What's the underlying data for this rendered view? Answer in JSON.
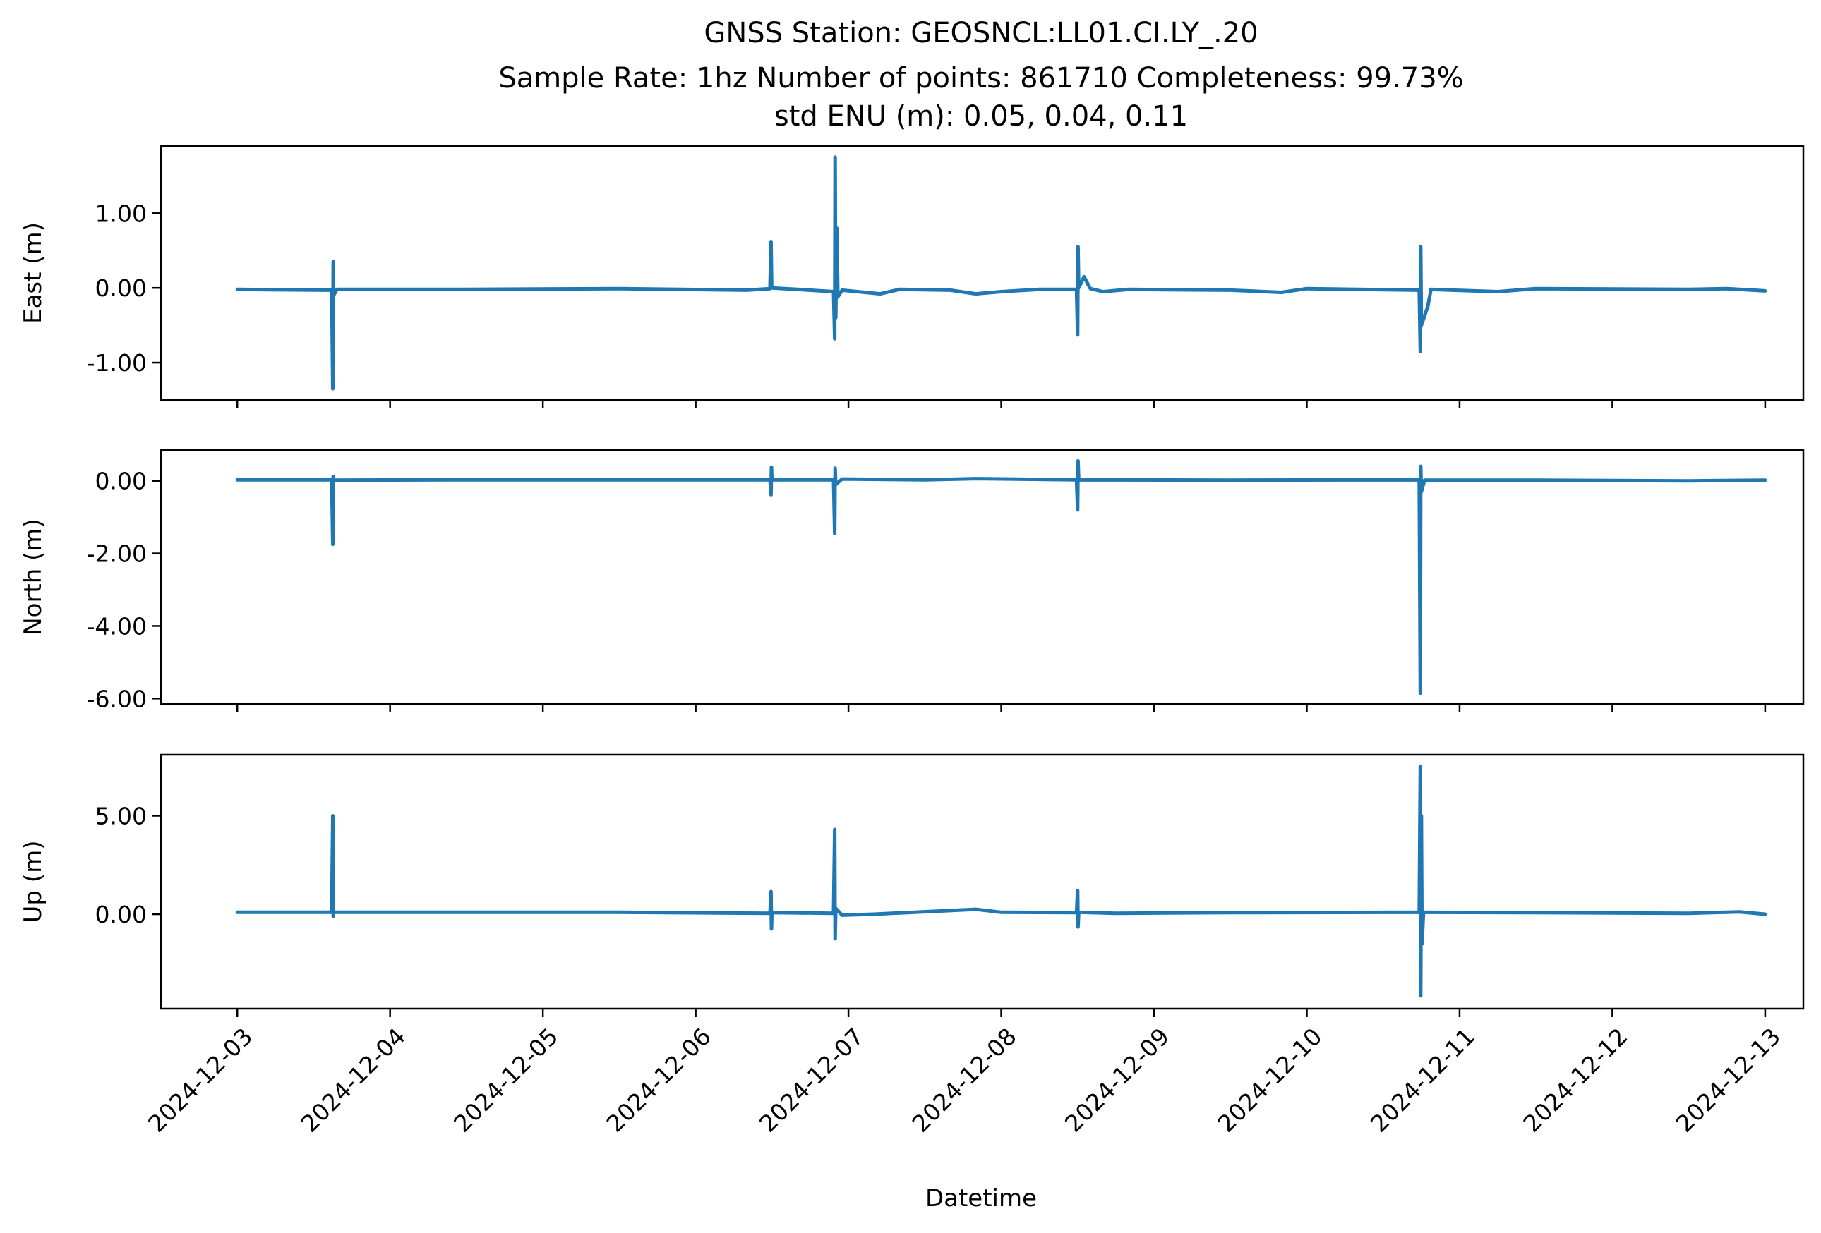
{
  "chart_data": {
    "type": "line",
    "title_lines": [
      "GNSS Station: GEOSNCL:LL01.CI.LY_.20",
      "Sample Rate: 1hz   Number of points: 861710    Completeness:  99.73%",
      "std ENU (m):  0.05, 0.04, 0.11"
    ],
    "xlabel": "Datetime",
    "x_ticks": [
      "2024-12-03",
      "2024-12-04",
      "2024-12-05",
      "2024-12-06",
      "2024-12-07",
      "2024-12-08",
      "2024-12-09",
      "2024-12-10",
      "2024-12-11",
      "2024-12-12",
      "2024-12-13"
    ],
    "xlim": [
      "2024-12-02 12:00",
      "2024-12-13 06:00"
    ],
    "color": "#1f77b4",
    "panels": [
      {
        "ylabel": "East (m)",
        "ylim": [
          -1.5,
          1.9
        ],
        "y_ticks": [
          1.0,
          0.0,
          -1.0
        ],
        "y_tick_labels": [
          "1.00",
          "0.00",
          "-1.00"
        ],
        "points": [
          [
            "2024-12-03 00:00",
            -0.02
          ],
          [
            "2024-12-03 14:00",
            -0.03
          ],
          [
            "2024-12-03 14:50",
            -0.03
          ],
          [
            "2024-12-03 15:00",
            -1.35
          ],
          [
            "2024-12-03 15:04",
            0.35
          ],
          [
            "2024-12-03 15:08",
            -0.1
          ],
          [
            "2024-12-03 15:40",
            -0.02
          ],
          [
            "2024-12-04 12:00",
            -0.02
          ],
          [
            "2024-12-05 12:00",
            -0.01
          ],
          [
            "2024-12-06 08:00",
            -0.03
          ],
          [
            "2024-12-06 11:40",
            -0.01
          ],
          [
            "2024-12-06 11:50",
            0.62
          ],
          [
            "2024-12-06 11:56",
            0.0
          ],
          [
            "2024-12-06 16:00",
            -0.02
          ],
          [
            "2024-12-06 21:40",
            -0.05
          ],
          [
            "2024-12-06 21:50",
            -0.68
          ],
          [
            "2024-12-06 21:54",
            1.75
          ],
          [
            "2024-12-06 22:00",
            -0.4
          ],
          [
            "2024-12-06 22:10",
            0.8
          ],
          [
            "2024-12-06 22:20",
            -0.12
          ],
          [
            "2024-12-06 23:00",
            -0.03
          ],
          [
            "2024-12-07 05:00",
            -0.08
          ],
          [
            "2024-12-07 08:00",
            -0.02
          ],
          [
            "2024-12-07 16:00",
            -0.03
          ],
          [
            "2024-12-07 20:00",
            -0.08
          ],
          [
            "2024-12-08 00:00",
            -0.05
          ],
          [
            "2024-12-08 06:00",
            -0.02
          ],
          [
            "2024-12-08 11:50",
            -0.02
          ],
          [
            "2024-12-08 12:00",
            -0.63
          ],
          [
            "2024-12-08 12:04",
            0.55
          ],
          [
            "2024-12-08 12:10",
            0.0
          ],
          [
            "2024-12-08 13:00",
            0.15
          ],
          [
            "2024-12-08 14:00",
            -0.01
          ],
          [
            "2024-12-08 16:00",
            -0.05
          ],
          [
            "2024-12-08 20:00",
            -0.02
          ],
          [
            "2024-12-09 12:00",
            -0.03
          ],
          [
            "2024-12-09 20:00",
            -0.06
          ],
          [
            "2024-12-10 00:00",
            -0.01
          ],
          [
            "2024-12-10 17:40",
            -0.03
          ],
          [
            "2024-12-10 17:50",
            -0.85
          ],
          [
            "2024-12-10 17:54",
            0.55
          ],
          [
            "2024-12-10 18:00",
            -0.5
          ],
          [
            "2024-12-10 19:00",
            -0.25
          ],
          [
            "2024-12-10 19:30",
            -0.02
          ],
          [
            "2024-12-11 06:00",
            -0.05
          ],
          [
            "2024-12-11 12:00",
            -0.01
          ],
          [
            "2024-12-12 12:00",
            -0.02
          ],
          [
            "2024-12-12 18:00",
            -0.01
          ],
          [
            "2024-12-13 00:00",
            -0.04
          ]
        ]
      },
      {
        "ylabel": "North (m)",
        "ylim": [
          -6.15,
          0.85
        ],
        "y_ticks": [
          0.0,
          -2.0,
          -4.0,
          -6.0
        ],
        "y_tick_labels": [
          "0.00",
          "-2.00",
          "-4.00",
          "-6.00"
        ],
        "points": [
          [
            "2024-12-03 00:00",
            0.03
          ],
          [
            "2024-12-03 14:50",
            0.03
          ],
          [
            "2024-12-03 15:00",
            -1.75
          ],
          [
            "2024-12-03 15:04",
            0.12
          ],
          [
            "2024-12-03 15:10",
            0.02
          ],
          [
            "2024-12-04 12:00",
            0.03
          ],
          [
            "2024-12-05 12:00",
            0.03
          ],
          [
            "2024-12-06 11:40",
            0.03
          ],
          [
            "2024-12-06 11:50",
            -0.38
          ],
          [
            "2024-12-06 11:54",
            0.38
          ],
          [
            "2024-12-06 11:58",
            0.03
          ],
          [
            "2024-12-06 21:40",
            0.03
          ],
          [
            "2024-12-06 21:50",
            -1.45
          ],
          [
            "2024-12-06 21:54",
            0.35
          ],
          [
            "2024-12-06 22:00",
            -0.1
          ],
          [
            "2024-12-06 23:00",
            0.05
          ],
          [
            "2024-12-07 12:00",
            0.03
          ],
          [
            "2024-12-07 20:00",
            0.06
          ],
          [
            "2024-12-08 11:50",
            0.03
          ],
          [
            "2024-12-08 12:00",
            -0.8
          ],
          [
            "2024-12-08 12:04",
            0.55
          ],
          [
            "2024-12-08 12:10",
            0.03
          ],
          [
            "2024-12-09 12:00",
            0.02
          ],
          [
            "2024-12-10 17:40",
            0.03
          ],
          [
            "2024-12-10 17:50",
            -5.85
          ],
          [
            "2024-12-10 17:54",
            0.4
          ],
          [
            "2024-12-10 18:00",
            -0.3
          ],
          [
            "2024-12-10 18:30",
            0.02
          ],
          [
            "2024-12-11 12:00",
            0.02
          ],
          [
            "2024-12-12 12:00",
            0.0
          ],
          [
            "2024-12-13 00:00",
            0.02
          ]
        ]
      },
      {
        "ylabel": "Up (m)",
        "ylim": [
          -4.8,
          8.1
        ],
        "y_ticks": [
          5.0,
          0.0
        ],
        "y_tick_labels": [
          "5.00",
          "0.00"
        ],
        "points": [
          [
            "2024-12-03 00:00",
            0.1
          ],
          [
            "2024-12-03 14:50",
            0.1
          ],
          [
            "2024-12-03 15:00",
            5.0
          ],
          [
            "2024-12-03 15:04",
            -0.1
          ],
          [
            "2024-12-03 15:10",
            0.1
          ],
          [
            "2024-12-04 12:00",
            0.1
          ],
          [
            "2024-12-05 12:00",
            0.1
          ],
          [
            "2024-12-06 11:40",
            0.05
          ],
          [
            "2024-12-06 11:50",
            1.15
          ],
          [
            "2024-12-06 11:54",
            -0.75
          ],
          [
            "2024-12-06 11:58",
            0.08
          ],
          [
            "2024-12-06 21:40",
            0.05
          ],
          [
            "2024-12-06 21:50",
            4.3
          ],
          [
            "2024-12-06 21:54",
            -1.25
          ],
          [
            "2024-12-06 22:00",
            0.3
          ],
          [
            "2024-12-06 23:00",
            -0.05
          ],
          [
            "2024-12-07 04:00",
            0.0
          ],
          [
            "2024-12-07 20:00",
            0.25
          ],
          [
            "2024-12-08 00:00",
            0.1
          ],
          [
            "2024-12-08 11:50",
            0.08
          ],
          [
            "2024-12-08 12:00",
            1.2
          ],
          [
            "2024-12-08 12:04",
            -0.65
          ],
          [
            "2024-12-08 12:10",
            0.1
          ],
          [
            "2024-12-08 18:00",
            0.05
          ],
          [
            "2024-12-09 12:00",
            0.08
          ],
          [
            "2024-12-10 17:40",
            0.1
          ],
          [
            "2024-12-10 17:50",
            7.5
          ],
          [
            "2024-12-10 17:54",
            -4.15
          ],
          [
            "2024-12-10 18:00",
            5.0
          ],
          [
            "2024-12-10 18:06",
            -1.5
          ],
          [
            "2024-12-10 18:20",
            0.1
          ],
          [
            "2024-12-11 12:00",
            0.08
          ],
          [
            "2024-12-12 12:00",
            0.05
          ],
          [
            "2024-12-12 20:00",
            0.12
          ],
          [
            "2024-12-13 00:00",
            0.0
          ]
        ]
      }
    ]
  }
}
